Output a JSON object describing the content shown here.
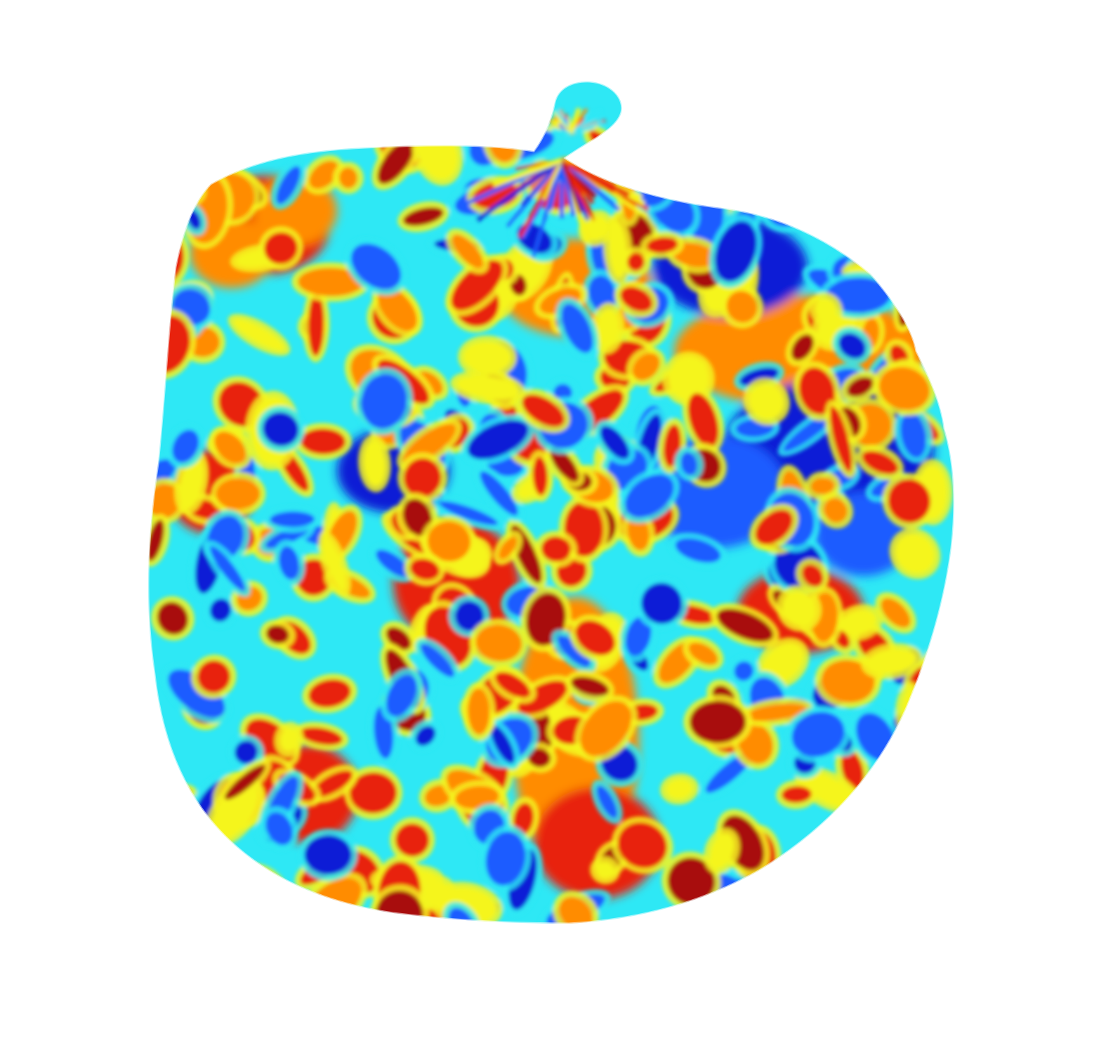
{
  "figure": {
    "kind": "flattened surface with jet colormap texture",
    "colormap": "jet",
    "background_color": "#ffffff",
    "palette": {
      "dark_blue": "#0a1fd6",
      "blue": "#1a5cff",
      "cyan": "#2ee8f5",
      "green_yellow": "#c8f53a",
      "yellow": "#f5f51e",
      "orange": "#ff8c00",
      "red": "#e8220a",
      "dark_red": "#a80a0a"
    }
  }
}
